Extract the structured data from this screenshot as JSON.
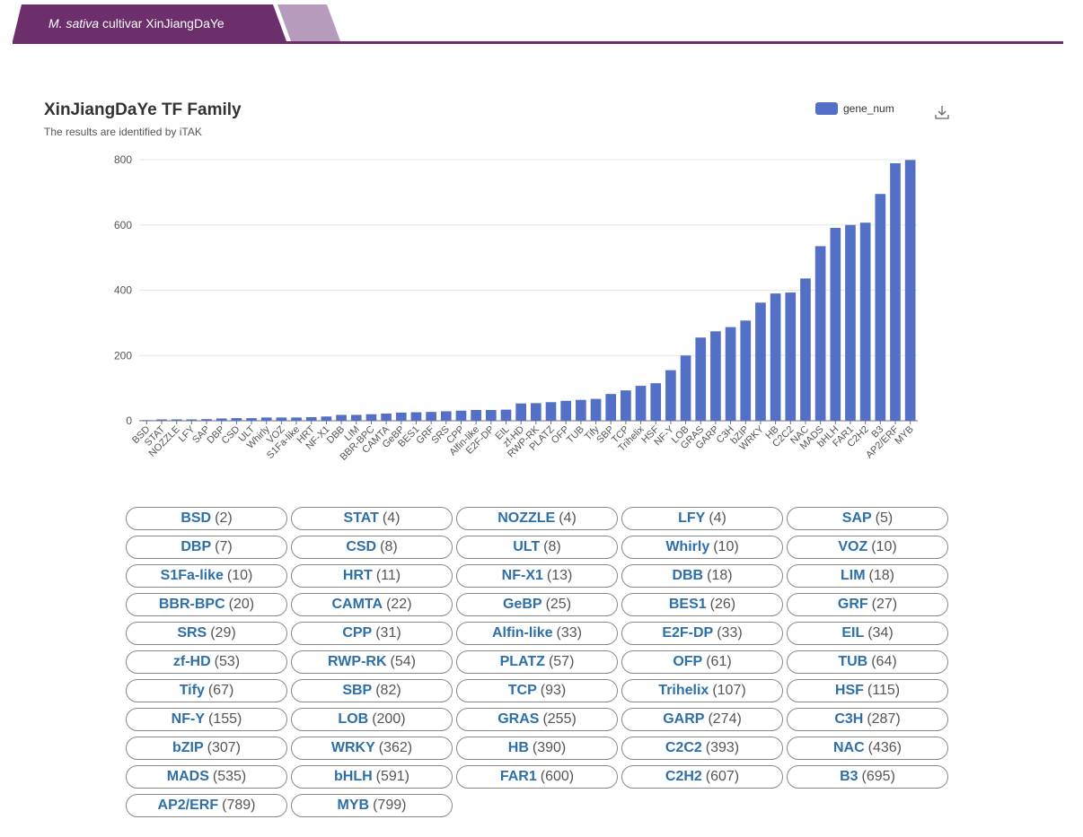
{
  "tab": {
    "active_species": "M. sativa",
    "active_rest": "cultivar XinJiangDaYe"
  },
  "legend": {
    "label": "gene_num"
  },
  "chart_data": {
    "type": "bar",
    "title": "XinJiangDaYe TF Family",
    "subtitle": "The results are identified by iTAK",
    "series_name": "gene_num",
    "color": "#5470c6",
    "ylim": [
      0,
      800
    ],
    "yticks": [
      0,
      200,
      400,
      600,
      800
    ],
    "categories": [
      "BSD",
      "STAT",
      "NOZZLE",
      "LFY",
      "SAP",
      "DBP",
      "CSD",
      "ULT",
      "Whirly",
      "VOZ",
      "S1Fa-like",
      "HRT",
      "NF-X1",
      "DBB",
      "LIM",
      "BBR-BPC",
      "CAMTA",
      "GeBP",
      "BES1",
      "GRF",
      "SRS",
      "CPP",
      "Alfin-like",
      "E2F-DP",
      "EIL",
      "zf-HD",
      "RWP-RK",
      "PLATZ",
      "OFP",
      "TUB",
      "Tify",
      "SBP",
      "TCP",
      "Trihelix",
      "HSF",
      "NF-Y",
      "LOB",
      "GRAS",
      "GARP",
      "C3H",
      "bZIP",
      "WRKY",
      "HB",
      "C2C2",
      "NAC",
      "MADS",
      "bHLH",
      "FAR1",
      "C2H2",
      "B3",
      "AP2/ERF",
      "MYB"
    ],
    "values": [
      2,
      4,
      4,
      4,
      5,
      7,
      8,
      8,
      10,
      10,
      10,
      11,
      13,
      18,
      18,
      20,
      22,
      25,
      26,
      27,
      29,
      31,
      33,
      33,
      34,
      53,
      54,
      57,
      61,
      64,
      67,
      82,
      93,
      107,
      115,
      155,
      200,
      255,
      274,
      287,
      307,
      362,
      390,
      393,
      436,
      535,
      591,
      600,
      607,
      695,
      789,
      799
    ]
  }
}
